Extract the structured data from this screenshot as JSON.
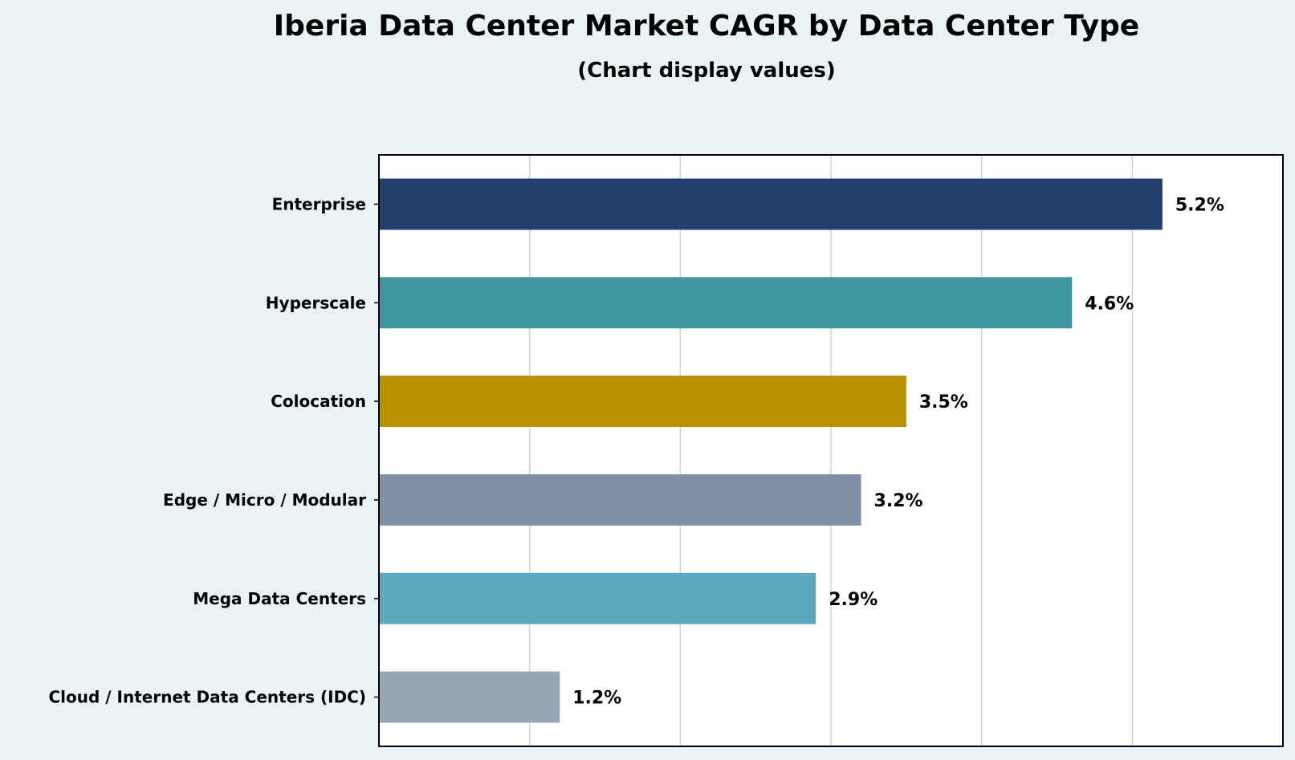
{
  "chart_data": {
    "type": "bar",
    "orientation": "horizontal",
    "title": "Iberia Data Center Market CAGR by Data Center Type",
    "subtitle": "(Chart display values)",
    "xlabel": "",
    "ylabel": "",
    "xlim": [
      0,
      6.0
    ],
    "grid": "vertical",
    "legend": "none",
    "categories": [
      "Enterprise",
      "Hyperscale",
      "Colocation",
      "Edge / Micro / Modular",
      "Mega Data Centers",
      "Cloud / Internet Data Centers (IDC)"
    ],
    "values": [
      5.2,
      4.6,
      3.5,
      3.2,
      2.9,
      1.2
    ],
    "value_labels": [
      "5.2%",
      "4.6%",
      "3.5%",
      "3.2%",
      "2.9%",
      "1.2%"
    ],
    "colors": [
      "#26406e",
      "#3f96a1",
      "#b89000",
      "#7f8fa4",
      "#5ca8bd",
      "#97a6b4"
    ]
  },
  "style": {
    "background": "#e9f2f5",
    "plot_background": "#ffffff",
    "grid_color": "#c9d6d6"
  }
}
